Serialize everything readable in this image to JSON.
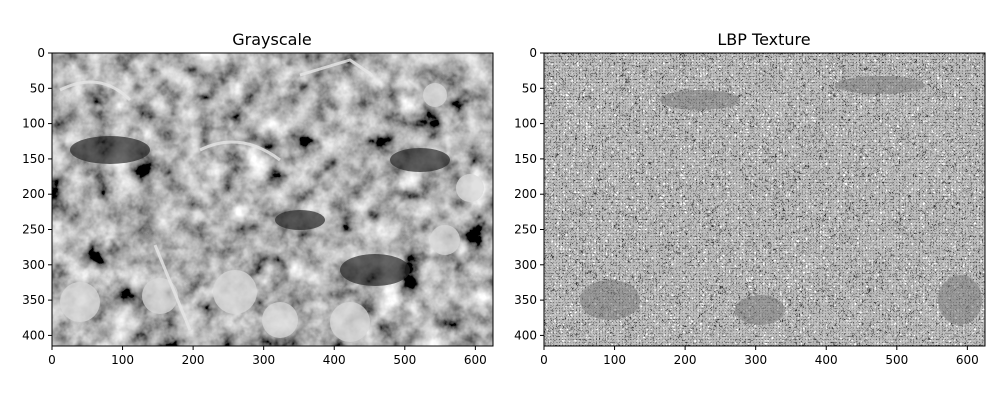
{
  "panels": [
    {
      "title": "Grayscale",
      "image_kind": "grayscale-photo",
      "x_ticks": [
        "0",
        "100",
        "200",
        "300",
        "400",
        "500",
        "600"
      ],
      "y_ticks": [
        "0",
        "50",
        "100",
        "150",
        "200",
        "250",
        "300",
        "350",
        "400"
      ],
      "xlim": [
        0,
        625
      ],
      "ylim": [
        415,
        0
      ]
    },
    {
      "title": "LBP Texture",
      "image_kind": "lbp-texture-map",
      "x_ticks": [
        "0",
        "100",
        "200",
        "300",
        "400",
        "500",
        "600"
      ],
      "y_ticks": [
        "0",
        "50",
        "100",
        "150",
        "200",
        "250",
        "300",
        "350",
        "400"
      ],
      "xlim": [
        0,
        625
      ],
      "ylim": [
        415,
        0
      ]
    }
  ]
}
